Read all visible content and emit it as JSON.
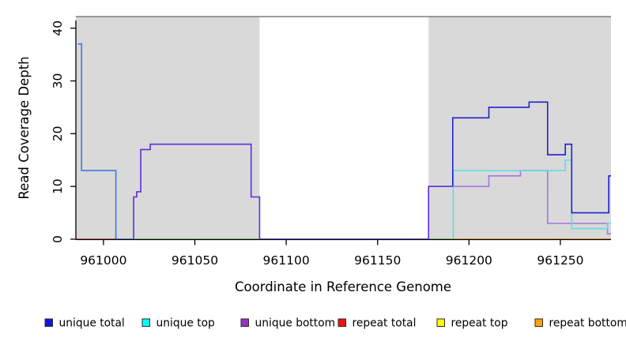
{
  "chart_data": {
    "type": "line",
    "step": true,
    "title": "",
    "xlabel": "Coordinate in Reference Genome",
    "ylabel": "Read Coverage Depth",
    "xlim": [
      960984.9,
      961277.7
    ],
    "ylim": [
      0,
      42.2
    ],
    "x_tick_values": [
      961000,
      961050,
      961100,
      961150,
      961200,
      961250
    ],
    "x_tick_labels": [
      "961000",
      "961050",
      "961100",
      "961150",
      "961200",
      "961250"
    ],
    "y_tick_values": [
      0,
      10,
      20,
      30,
      40
    ],
    "y_tick_labels": [
      "0",
      "10",
      "20",
      "30",
      "40"
    ],
    "grid": false,
    "legend_position": "bottom",
    "panel_border_color": "#7d7d7d",
    "panel_background_regions": [
      {
        "name": "masked-region-left",
        "x0": 960984.9,
        "x1": 961085.5,
        "color": "#d9d9d9"
      },
      {
        "name": "unmasked-gap",
        "x0": 961085.5,
        "x1": 961177.9,
        "color": "#ffffff"
      },
      {
        "name": "masked-region-right",
        "x0": 961177.9,
        "x1": 961277.7,
        "color": "#d9d9d9"
      }
    ],
    "series": [
      {
        "name": "unique total + unique bottom overlap",
        "color": "#5c2ee0",
        "points": [
          [
            961016.5,
            0
          ],
          [
            961016.5,
            8
          ],
          [
            961018.2,
            8
          ],
          [
            961018.2,
            9
          ],
          [
            961020.4,
            9
          ],
          [
            961020.4,
            17
          ],
          [
            961025.6,
            17
          ],
          [
            961025.6,
            18
          ],
          [
            961080.8,
            18
          ],
          [
            961080.8,
            8
          ],
          [
            961085.4,
            8
          ],
          [
            961085.4,
            0
          ],
          [
            961177.9,
            0
          ],
          [
            961177.9,
            10
          ],
          [
            961191.1,
            10
          ]
        ]
      },
      {
        "name": "unique total + unique top overlap",
        "color": "#3d7ae8",
        "points": [
          [
            960986,
            37
          ],
          [
            960988,
            37
          ],
          [
            960988,
            13
          ],
          [
            961006.8,
            13
          ],
          [
            961006.8,
            0
          ],
          [
            961016.5,
            0
          ]
        ]
      },
      {
        "name": "repeat total",
        "color": "#e0485a",
        "points": [
          [
            960984.9,
            0
          ],
          [
            961006.8,
            0
          ]
        ]
      },
      {
        "name": "unique top + repeat top overlap (left)",
        "color": "#74c874",
        "points": [
          [
            961016.5,
            0
          ],
          [
            961085.4,
            0
          ]
        ]
      },
      {
        "name": "unique top + repeat top overlap (right)",
        "color": "#74c874",
        "points": [
          [
            961177.9,
            0
          ],
          [
            961191.1,
            0
          ]
        ]
      },
      {
        "name": "unique bottom",
        "color": "#a775df",
        "points": [
          [
            961191.1,
            10
          ],
          [
            961210.9,
            10
          ],
          [
            961210.9,
            12
          ],
          [
            961228.2,
            12
          ],
          [
            961228.2,
            13
          ],
          [
            961243,
            13
          ],
          [
            961243,
            3
          ],
          [
            961275.8,
            3
          ],
          [
            961275.8,
            1
          ],
          [
            961277.7,
            1
          ]
        ]
      },
      {
        "name": "unique top",
        "color": "#5fdfe6",
        "points": [
          [
            961191.4,
            0
          ],
          [
            961191.4,
            13
          ],
          [
            961252.7,
            13
          ],
          [
            961252.7,
            15
          ],
          [
            961256.2,
            15
          ],
          [
            961256.2,
            2
          ],
          [
            961275.8,
            2
          ],
          [
            961275.8,
            3
          ],
          [
            961277.7,
            3
          ]
        ]
      },
      {
        "name": "unique total",
        "color": "#2121cc",
        "points": [
          [
            961191.1,
            10
          ],
          [
            961191.1,
            23
          ],
          [
            961210.9,
            23
          ],
          [
            961210.9,
            25
          ],
          [
            961232.9,
            25
          ],
          [
            961232.9,
            26
          ],
          [
            961243,
            26
          ],
          [
            961243,
            16
          ],
          [
            961252.7,
            16
          ],
          [
            961252.7,
            18
          ],
          [
            961256.2,
            18
          ],
          [
            961256.2,
            5
          ],
          [
            961276.5,
            5
          ],
          [
            961276.5,
            12
          ],
          [
            961277.7,
            12
          ]
        ]
      },
      {
        "name": "repeat bottom",
        "color": "#ff9717",
        "points": [
          [
            961191.1,
            0
          ],
          [
            961277.7,
            0
          ]
        ]
      }
    ],
    "legend": [
      {
        "label": "unique total",
        "color": "#1414e0"
      },
      {
        "label": "unique top",
        "color": "#00ffff"
      },
      {
        "label": "unique bottom",
        "color": "#9632c8"
      },
      {
        "label": "repeat total",
        "color": "#ee1111"
      },
      {
        "label": "repeat top",
        "color": "#ffff00"
      },
      {
        "label": "repeat bottom",
        "color": "#ffa500"
      }
    ]
  }
}
